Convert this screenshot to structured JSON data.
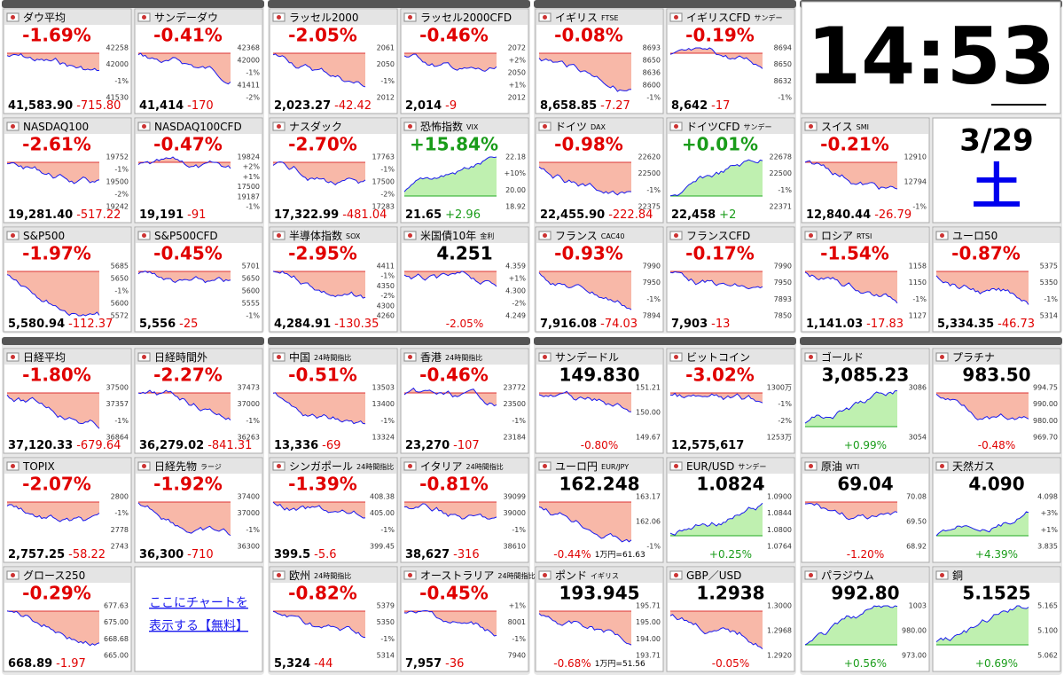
{
  "clock": {
    "time": "14:53",
    "date": "3/29",
    "weekday": "土"
  },
  "link": [
    "ここにチャートを",
    "表示する【無料】"
  ],
  "groups": [
    {
      "tiles": [
        {
          "name": "ダウ平均",
          "top": "-1.69%",
          "bottom": [
            "41,583.90",
            "-715.80"
          ],
          "axis": [
            "42258",
            "42000",
            "-1%",
            "41530"
          ]
        },
        {
          "name": "サンデーダウ",
          "top": "-0.41%",
          "bottom": [
            "41,414",
            "-170"
          ],
          "axis": [
            "42368",
            "42000",
            "-1%",
            "41411",
            "-2%"
          ]
        },
        {
          "name": "NASDAQ100",
          "top": "-2.61%",
          "bottom": [
            "19,281.40",
            "-517.22"
          ],
          "axis": [
            "19752",
            "-1%",
            "19500",
            "-2%",
            "19242"
          ]
        },
        {
          "name": "NASDAQ100CFD",
          "top": "-0.47%",
          "bottom": [
            "19,191",
            "-91"
          ],
          "axis": [
            "19824",
            "+2%",
            "+1%",
            "17500",
            "19187",
            "-1%"
          ]
        },
        {
          "name": "S&P500",
          "top": "-1.97%",
          "bottom": [
            "5,580.94",
            "-112.37"
          ],
          "axis": [
            "5685",
            "5650",
            "-1%",
            "5600",
            "5572"
          ]
        },
        {
          "name": "S&P500CFD",
          "top": "-0.45%",
          "bottom": [
            "5,556",
            "-25"
          ],
          "axis": [
            "5701",
            "5650",
            "5600",
            "5555",
            "-1%"
          ]
        }
      ]
    },
    {
      "tiles": [
        {
          "name": "ラッセル2000",
          "top": "-2.05%",
          "bottom": [
            "2,023.27",
            "-42.42"
          ],
          "axis": [
            "2061",
            "2050",
            "-1%",
            "2012"
          ]
        },
        {
          "name": "ラッセル2000CFD",
          "top": "-0.46%",
          "bottom": [
            "2,014",
            "-9"
          ],
          "axis": [
            "2072",
            "+2%",
            "2050",
            "+1%",
            "2012"
          ]
        },
        {
          "name": "ナスダック",
          "top": "-2.70%",
          "bottom": [
            "17,322.99",
            "-481.04"
          ],
          "axis": [
            "17763",
            "-1%",
            "17500",
            "-2%",
            "17283"
          ]
        },
        {
          "name": "恐怖指数",
          "sub": "VIX",
          "top": "+15.84%",
          "bottom": [
            "21.65",
            "+2.96"
          ],
          "axis": [
            "22.18",
            "+10%",
            "20.00",
            "18.92"
          ]
        },
        {
          "name": "半導体指数",
          "sub": "SOX",
          "top": "-2.95%",
          "bottom": [
            "4,284.91",
            "-130.35"
          ],
          "axis": [
            "4411",
            "-1%",
            "4350",
            "-2%",
            "4300",
            "4260"
          ]
        },
        {
          "name": "米国債10年",
          "sub": "金利",
          "top": "4.251",
          "bottom": [
            "-2.05%"
          ],
          "axis": [
            "4.359",
            "+1%",
            "4.300",
            "-2%",
            "4.249"
          ]
        }
      ]
    },
    {
      "tiles": [
        {
          "name": "イギリス",
          "sub": "FTSE",
          "top": "-0.08%",
          "bottom": [
            "8,658.85",
            "-7.27"
          ],
          "axis": [
            "8693",
            "8650",
            "8636",
            "8600",
            "-1%"
          ]
        },
        {
          "name": "イギリスCFD",
          "sub": "サンデー",
          "top": "-0.19%",
          "bottom": [
            "8,642",
            "-17"
          ],
          "axis": [
            "8694",
            "8650",
            "8632",
            "-1%"
          ]
        },
        {
          "name": "ドイツ",
          "sub": "DAX",
          "top": "-0.98%",
          "bottom": [
            "22,455.90",
            "-222.84"
          ],
          "axis": [
            "22620",
            "22500",
            "-1%",
            "22375"
          ]
        },
        {
          "name": "ドイツCFD",
          "sub": "サンデー",
          "top": "+0.01%",
          "bottom": [
            "22,458",
            "+2"
          ],
          "axis": [
            "22678",
            "22500",
            "-1%",
            "22371"
          ]
        },
        {
          "name": "フランス",
          "sub": "CAC40",
          "top": "-0.93%",
          "bottom": [
            "7,916.08",
            "-74.03"
          ],
          "axis": [
            "7990",
            "7950",
            "-1%",
            "7894"
          ]
        },
        {
          "name": "フランスCFD",
          "top": "-0.17%",
          "bottom": [
            "7,903",
            "-13"
          ],
          "axis": [
            "7990",
            "7950",
            "7893",
            "7850"
          ]
        }
      ]
    },
    {
      "tiles": [
        {
          "name": "スイス",
          "sub": "SMI",
          "top": "-0.21%",
          "bottom": [
            "12,840.44",
            "-26.79"
          ],
          "axis": [
            "12910",
            "12794",
            "-1%"
          ]
        },
        {
          "name": "ロシア",
          "sub": "RTSI",
          "top": "-1.54%",
          "bottom": [
            "1,141.03",
            "-17.83"
          ],
          "axis": [
            "1158",
            "1150",
            "-1%",
            "1127"
          ]
        },
        {
          "name": "ユーロ50",
          "top": "-0.87%",
          "bottom": [
            "5,334.35",
            "-46.73"
          ],
          "axis": [
            "5375",
            "5350",
            "-1%",
            "5314"
          ]
        }
      ]
    },
    {
      "tiles": [
        {
          "name": "日経平均",
          "top": "-1.80%",
          "bottom": [
            "37,120.33",
            "-679.64"
          ],
          "axis": [
            "37500",
            "37357",
            "-1%",
            "36864"
          ]
        },
        {
          "name": "日経時間外",
          "top": "-2.27%",
          "bottom": [
            "36,279.02",
            "-841.31"
          ],
          "axis": [
            "37473",
            "37000",
            "-1%",
            "36263"
          ]
        },
        {
          "name": "TOPIX",
          "top": "-2.07%",
          "bottom": [
            "2,757.25",
            "-58.22"
          ],
          "axis": [
            "2800",
            "-1%",
            "2778",
            "2743"
          ]
        },
        {
          "name": "日経先物",
          "sub": "ラージ",
          "top": "-1.92%",
          "bottom": [
            "36,300",
            "-710"
          ],
          "axis": [
            "37400",
            "37000",
            "-1%",
            "36300"
          ]
        },
        {
          "name": "グロース250",
          "top": "-0.29%",
          "bottom": [
            "668.89",
            "-1.97"
          ],
          "axis": [
            "677.63",
            "675.00",
            "668.68",
            "665.00"
          ]
        }
      ]
    },
    {
      "tiles": [
        {
          "name": "中国",
          "sub": "24時間指比",
          "top": "-0.51%",
          "bottom": [
            "13,336",
            "-69"
          ],
          "axis": [
            "13503",
            "13400",
            "-1%",
            "13324"
          ]
        },
        {
          "name": "香港",
          "sub": "24時間指比",
          "top": "-0.46%",
          "bottom": [
            "23,270",
            "-107"
          ],
          "axis": [
            "23772",
            "23500",
            "-1%",
            "23184"
          ]
        },
        {
          "name": "シンガポール",
          "sub": "24時間指比",
          "top": "-1.39%",
          "bottom": [
            "399.5",
            "-5.6"
          ],
          "axis": [
            "408.38",
            "405.00",
            "-1%",
            "399.45"
          ]
        },
        {
          "name": "イタリア",
          "sub": "24時間指比",
          "top": "-0.81%",
          "bottom": [
            "38,627",
            "-316"
          ],
          "axis": [
            "39099",
            "39000",
            "-1%",
            "38610"
          ]
        },
        {
          "name": "欧州",
          "sub": "24時間指比",
          "top": "-0.82%",
          "bottom": [
            "5,324",
            "-44"
          ],
          "axis": [
            "5379",
            "5350",
            "-1%",
            "5314"
          ]
        },
        {
          "name": "オーストラリア",
          "sub": "24時間指比",
          "top": "-0.45%",
          "bottom": [
            "7,957",
            "-36"
          ],
          "axis": [
            "+1%",
            "8001",
            "-1%",
            "7940"
          ]
        }
      ]
    },
    {
      "tiles": [
        {
          "name": "サンデードル",
          "top": "149.830",
          "bottom": [
            "-0.80%"
          ],
          "axis": [
            "151.21",
            "150.00",
            "149.67"
          ]
        },
        {
          "name": "ビットコイン",
          "top": "-3.02%",
          "bottom": [
            "12,575,617"
          ],
          "axis": [
            "1300万",
            "-1%",
            "-2%",
            "1253万"
          ]
        },
        {
          "name": "ユーロ円",
          "sub": "EUR/JPY",
          "top": "162.248",
          "bottom": [
            "-0.44%",
            "1万円=61.63"
          ],
          "axis": [
            "163.17",
            "162.06",
            "-1%"
          ]
        },
        {
          "name": "EUR/USD",
          "sub": "サンデー",
          "top": "1.0824",
          "bottom": [
            "+0.25%"
          ],
          "axis": [
            "1.0900",
            "1.0844",
            "1.0800",
            "1.0764"
          ]
        },
        {
          "name": "ポンド",
          "sub": "イギリス",
          "top": "193.945",
          "bottom": [
            "-0.68%",
            "1万円=51.56"
          ],
          "axis": [
            "195.71",
            "195.00",
            "194.00",
            "193.71"
          ]
        },
        {
          "name": "GBP／USD",
          "top": "1.2938",
          "bottom": [
            "-0.05%"
          ],
          "axis": [
            "1.3000",
            "1.2968",
            "1.2920"
          ]
        }
      ]
    },
    {
      "tiles": [
        {
          "name": "ゴールド",
          "top": "3,085.23",
          "bottom": [
            "+0.99%"
          ],
          "axis": [
            "3086",
            "3054"
          ]
        },
        {
          "name": "プラチナ",
          "top": "983.50",
          "bottom": [
            "-0.48%"
          ],
          "axis": [
            "994.75",
            "990.00",
            "980.00",
            "969.70"
          ]
        },
        {
          "name": "原油",
          "sub": "WTI",
          "top": "69.04",
          "bottom": [
            "-1.20%"
          ],
          "axis": [
            "70.08",
            "69.50",
            "68.92"
          ]
        },
        {
          "name": "天然ガス",
          "top": "4.090",
          "bottom": [
            "+4.39%"
          ],
          "axis": [
            "4.098",
            "+3%",
            "+1%",
            "3.835"
          ]
        },
        {
          "name": "パラジウム",
          "top": "992.80",
          "bottom": [
            "+0.56%"
          ],
          "axis": [
            "1003",
            "980.00",
            "973.00"
          ]
        },
        {
          "name": "銅",
          "top": "5.1525",
          "bottom": [
            "+0.69%"
          ],
          "axis": [
            "5.165",
            "5.100",
            "5.062"
          ]
        }
      ]
    }
  ]
}
